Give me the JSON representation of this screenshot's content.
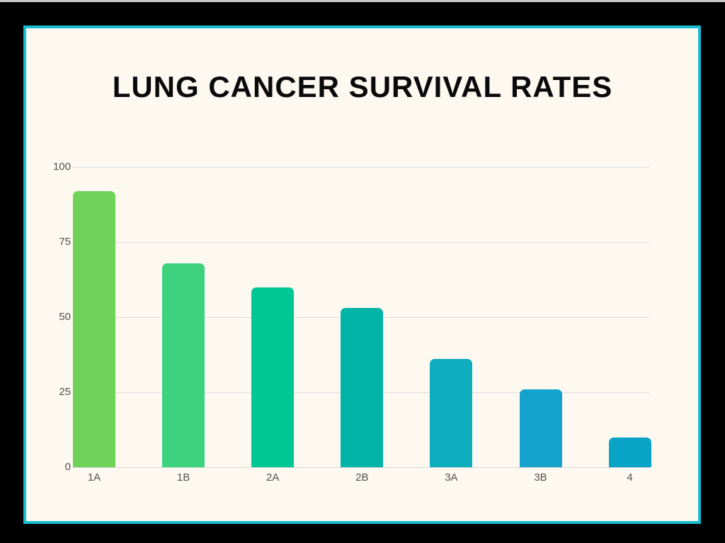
{
  "page": {
    "title": "LUNG CANCER SURVIVAL RATES"
  },
  "colors": {
    "frame": "#000000",
    "top_strip": "#c6c6c6",
    "panel_bg": "#fdf9f1",
    "panel_border": "#18bdd0",
    "gridline": "#dcdcdc",
    "axis_label": "#55504c",
    "title": "#0a0a0a"
  },
  "chart_data": {
    "type": "bar",
    "title": "LUNG CANCER SURVIVAL RATES",
    "categories": [
      "1A",
      "1B",
      "2A",
      "2B",
      "3A",
      "3B",
      "4"
    ],
    "values": [
      92,
      68,
      60,
      53,
      36,
      26,
      10
    ],
    "bar_colors": [
      "#6fd35a",
      "#3ed17e",
      "#00c794",
      "#00b4a7",
      "#0fadbe",
      "#14a3cc",
      "#0aa3c8"
    ],
    "xlabel": "",
    "ylabel": "",
    "ylim": [
      0,
      100
    ],
    "yticks": [
      0,
      25,
      50,
      75,
      100
    ],
    "grid": "horizontal",
    "legend": "none"
  }
}
